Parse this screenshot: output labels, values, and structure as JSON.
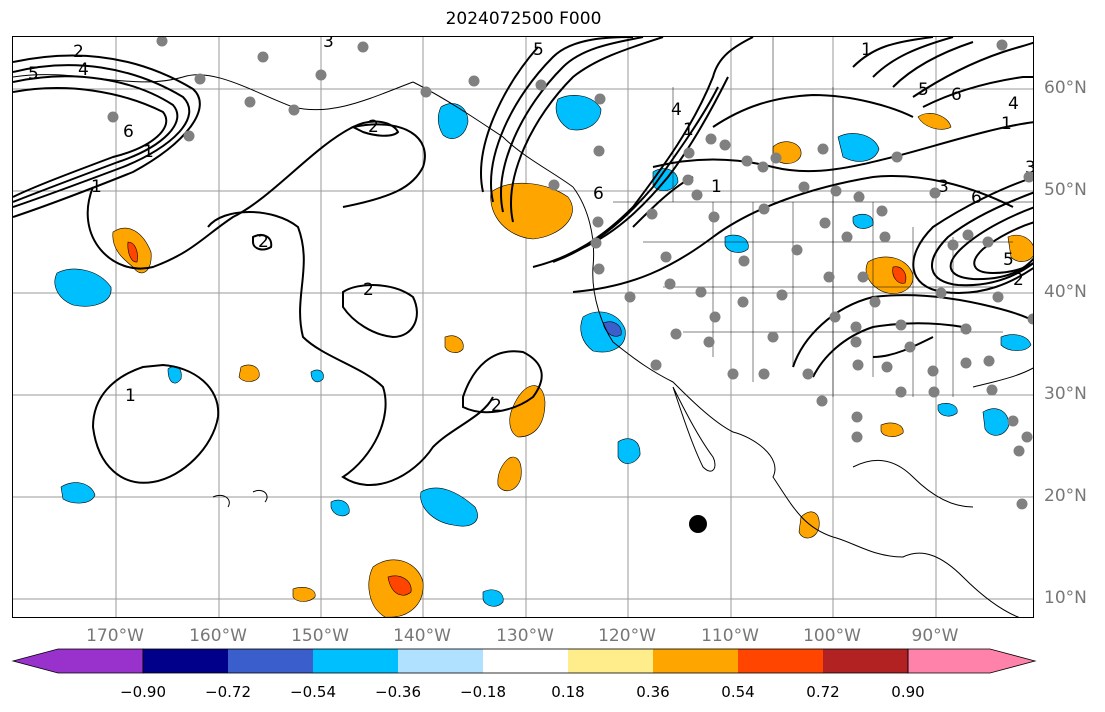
{
  "title": "2024072500 F000",
  "lat_labels": [
    "60°N",
    "50°N",
    "40°N",
    "30°N",
    "20°N",
    "10°N"
  ],
  "lon_labels": [
    "170°W",
    "160°W",
    "150°W",
    "140°W",
    "130°W",
    "120°W",
    "110°W",
    "100°W",
    "90°W"
  ],
  "colorbar": {
    "ticks": [
      "−0.90",
      "−0.72",
      "−0.54",
      "−0.36",
      "−0.18",
      "0.18",
      "0.36",
      "0.54",
      "0.72",
      "0.90"
    ],
    "colors": [
      "#9932cc",
      "#00008b",
      "#3a5fcd",
      "#00bfff",
      "#b0e2ff",
      "#ffffff",
      "#ffec8b",
      "#ffa500",
      "#ff4500",
      "#b22222",
      "#ff82ab"
    ]
  },
  "contour_labels": [
    "2",
    "5",
    "4",
    "5",
    "6",
    "3",
    "1",
    "2",
    "1",
    "2",
    "2",
    "1",
    "2",
    "1",
    "6",
    "4",
    "1",
    "1",
    "6",
    "5",
    "1",
    "4",
    "6",
    "3",
    "2",
    "5",
    "3"
  ],
  "marker": "hurricane-center-marker"
}
